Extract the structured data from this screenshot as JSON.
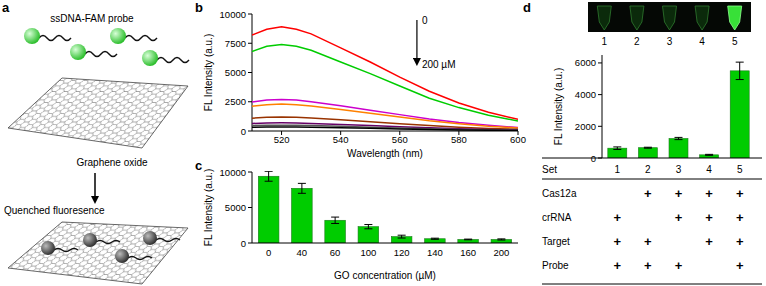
{
  "diagram": {
    "panel": "a",
    "probe_label": "ssDNA-FAM probe",
    "sheet_label": "Graphene oxide",
    "result_label": "Quenched fluoresence"
  },
  "chart_data": [
    {
      "panel": "b",
      "type": "line",
      "x": [
        510,
        515,
        520,
        525,
        530,
        540,
        550,
        560,
        570,
        580,
        590,
        600
      ],
      "series": [
        {
          "color": "#ff0000",
          "values": [
            8200,
            8700,
            8900,
            8700,
            8300,
            7100,
            5900,
            4600,
            3400,
            2400,
            1600,
            1000
          ]
        },
        {
          "color": "#00cc00",
          "values": [
            6800,
            7250,
            7400,
            7250,
            6900,
            5900,
            4900,
            3850,
            2800,
            2000,
            1350,
            850
          ]
        },
        {
          "color": "#cc00cc",
          "values": [
            2480,
            2650,
            2700,
            2650,
            2500,
            2150,
            1780,
            1400,
            1030,
            730,
            490,
            300
          ]
        },
        {
          "color": "#ff8000",
          "values": [
            2120,
            2250,
            2300,
            2250,
            2140,
            1840,
            1520,
            1200,
            870,
            620,
            410,
            260
          ]
        },
        {
          "color": "#993300",
          "values": [
            1100,
            1170,
            1200,
            1170,
            1110,
            960,
            790,
            620,
            460,
            320,
            220,
            140
          ]
        },
        {
          "color": "#660066",
          "values": [
            640,
            690,
            700,
            690,
            650,
            560,
            460,
            360,
            270,
            190,
            130,
            80
          ]
        },
        {
          "color": "#555555",
          "values": [
            460,
            490,
            500,
            490,
            465,
            400,
            330,
            260,
            190,
            135,
            90,
            55
          ]
        },
        {
          "color": "#000000",
          "values": [
            320,
            340,
            350,
            340,
            325,
            280,
            230,
            180,
            135,
            95,
            65,
            40
          ]
        }
      ],
      "xlim": [
        510,
        600
      ],
      "xticks": [
        520,
        540,
        560,
        580,
        600
      ],
      "ylim": [
        0,
        10000
      ],
      "yticks": [
        0,
        2500,
        5000,
        7500,
        10000
      ],
      "x_label": "Wavelength (nm)",
      "y_label": "FL Intensity (a.u.)",
      "annotations": [
        "0",
        "200 µM"
      ]
    },
    {
      "panel": "c",
      "type": "bar",
      "categories": [
        "0",
        "40",
        "60",
        "100",
        "120",
        "140",
        "160",
        "200"
      ],
      "values": [
        9400,
        7700,
        3200,
        2300,
        900,
        600,
        500,
        500
      ],
      "errors": [
        700,
        700,
        450,
        300,
        200,
        80,
        50,
        80
      ],
      "color": "#00cc00",
      "ylim": [
        0,
        10000
      ],
      "yticks": [
        0,
        5000,
        10000
      ],
      "x_label": "GO concentration (µM)",
      "y_label": "FL Intensity (a.u.)"
    },
    {
      "panel": "d",
      "type": "bar",
      "categories": [
        "1",
        "2",
        "3",
        "4",
        "5"
      ],
      "values": [
        620,
        650,
        1230,
        200,
        5500
      ],
      "errors": [
        80,
        30,
        70,
        30,
        550
      ],
      "color": "#00cc00",
      "ylim": [
        0,
        6500
      ],
      "yticks": [
        0,
        2000,
        4000,
        6000
      ],
      "x_label": "Set",
      "y_label": "FL Intensity (a.u.)",
      "photo_labels": [
        "1",
        "2",
        "3",
        "4",
        "5"
      ],
      "table": {
        "rows": [
          {
            "label": "Cas12a",
            "cells": [
              null,
              "+",
              "+",
              "+",
              "+"
            ]
          },
          {
            "label": "crRNA",
            "cells": [
              "+",
              null,
              "+",
              "+",
              "+"
            ]
          },
          {
            "label": "Target",
            "cells": [
              "+",
              "+",
              null,
              "+",
              "+"
            ]
          },
          {
            "label": "Probe",
            "cells": [
              "+",
              "+",
              "+",
              null,
              "+"
            ]
          }
        ]
      }
    }
  ]
}
